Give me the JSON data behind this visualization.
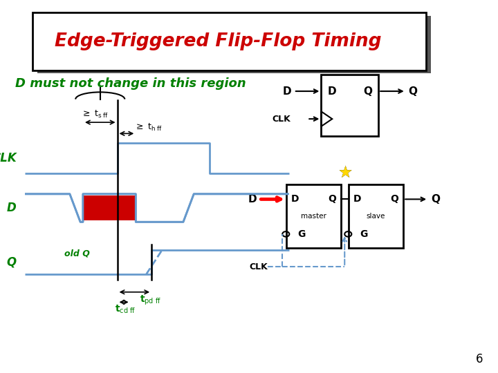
{
  "title": "Edge-Triggered Flip-Flop Timing",
  "subtitle": "D must not change in this region",
  "bg_color": "#ffffff",
  "title_color": "#cc0000",
  "subtitle_color": "#008000",
  "label_color": "#008000",
  "waveform_color": "#6699cc",
  "page_number": "6"
}
